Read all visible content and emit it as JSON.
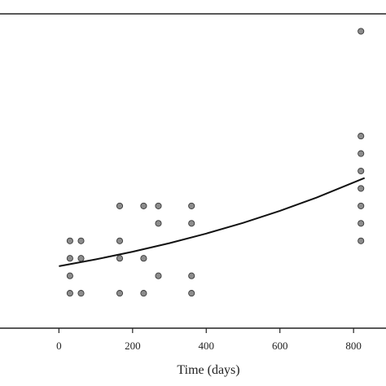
{
  "chart_data": {
    "type": "scatter",
    "title": "",
    "xlabel": "Time (days)",
    "ylabel": "",
    "xlim": [
      -160,
      835
    ],
    "ylim": [
      0,
      18
    ],
    "xticks": [
      0,
      200,
      400,
      600,
      800
    ],
    "grid": false,
    "legend": "none",
    "points": [
      {
        "x": 30,
        "y": 5
      },
      {
        "x": 30,
        "y": 4
      },
      {
        "x": 30,
        "y": 3
      },
      {
        "x": 30,
        "y": 2
      },
      {
        "x": 60,
        "y": 5
      },
      {
        "x": 60,
        "y": 4
      },
      {
        "x": 60,
        "y": 2
      },
      {
        "x": 165,
        "y": 7
      },
      {
        "x": 165,
        "y": 5
      },
      {
        "x": 165,
        "y": 4
      },
      {
        "x": 165,
        "y": 2
      },
      {
        "x": 230,
        "y": 7
      },
      {
        "x": 230,
        "y": 4
      },
      {
        "x": 230,
        "y": 2
      },
      {
        "x": 270,
        "y": 7
      },
      {
        "x": 270,
        "y": 6
      },
      {
        "x": 270,
        "y": 3
      },
      {
        "x": 360,
        "y": 7
      },
      {
        "x": 360,
        "y": 6
      },
      {
        "x": 360,
        "y": 3
      },
      {
        "x": 360,
        "y": 2
      },
      {
        "x": 820,
        "y": 17
      },
      {
        "x": 820,
        "y": 11
      },
      {
        "x": 820,
        "y": 10
      },
      {
        "x": 820,
        "y": 9
      },
      {
        "x": 820,
        "y": 8
      },
      {
        "x": 820,
        "y": 7
      },
      {
        "x": 820,
        "y": 6
      },
      {
        "x": 820,
        "y": 5
      }
    ],
    "fit_curve": {
      "type": "exponential",
      "x": [
        0,
        100,
        200,
        300,
        400,
        500,
        600,
        700,
        830
      ],
      "y": [
        3.55,
        3.94,
        4.38,
        4.87,
        5.42,
        6.03,
        6.72,
        7.48,
        8.6
      ]
    },
    "colors": {
      "point_fill": "#8c8c8c",
      "point_stroke": "#3a3a3a",
      "curve": "#111111",
      "axis": "#222222"
    }
  }
}
